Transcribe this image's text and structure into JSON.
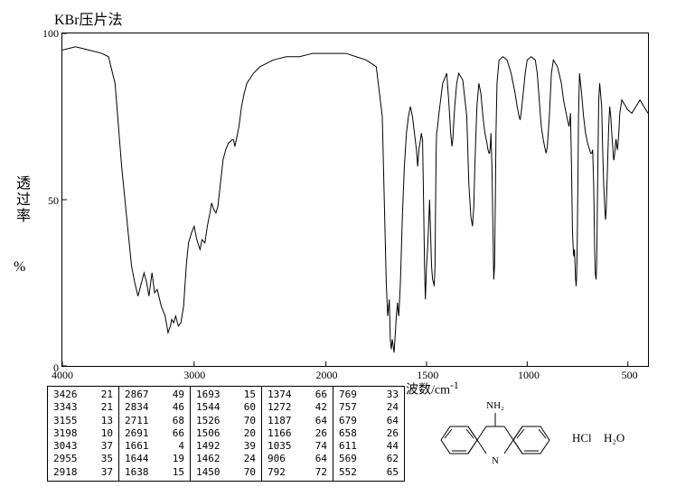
{
  "title": "KBr压片法",
  "ylabel1": "透过率",
  "ylabel2": "%",
  "xlabel": "波数/cm",
  "xlabel_sup": "-1",
  "chart": {
    "type": "line",
    "xlim": [
      4000,
      400
    ],
    "ylim": [
      0,
      100
    ],
    "yticks": [
      0,
      50,
      100
    ],
    "xticks": [
      4000,
      3000,
      2000,
      1500,
      1000,
      500
    ],
    "line_color": "#000000",
    "background_color": "#ffffff",
    "line_width": 1,
    "points": [
      [
        4000,
        95
      ],
      [
        3900,
        96
      ],
      [
        3800,
        95
      ],
      [
        3700,
        94
      ],
      [
        3650,
        93
      ],
      [
        3600,
        85
      ],
      [
        3550,
        60
      ],
      [
        3500,
        40
      ],
      [
        3475,
        30
      ],
      [
        3450,
        25
      ],
      [
        3426,
        21
      ],
      [
        3400,
        25
      ],
      [
        3380,
        28
      ],
      [
        3360,
        25
      ],
      [
        3343,
        21
      ],
      [
        3320,
        28
      ],
      [
        3300,
        22
      ],
      [
        3280,
        23
      ],
      [
        3250,
        18
      ],
      [
        3220,
        15
      ],
      [
        3198,
        10
      ],
      [
        3180,
        12
      ],
      [
        3170,
        14
      ],
      [
        3155,
        13
      ],
      [
        3140,
        15
      ],
      [
        3120,
        12
      ],
      [
        3100,
        13
      ],
      [
        3080,
        18
      ],
      [
        3060,
        30
      ],
      [
        3043,
        37
      ],
      [
        3020,
        40
      ],
      [
        3000,
        42
      ],
      [
        2980,
        38
      ],
      [
        2955,
        35
      ],
      [
        2940,
        38
      ],
      [
        2918,
        37
      ],
      [
        2900,
        42
      ],
      [
        2880,
        46
      ],
      [
        2867,
        49
      ],
      [
        2850,
        47
      ],
      [
        2834,
        46
      ],
      [
        2820,
        48
      ],
      [
        2800,
        55
      ],
      [
        2780,
        62
      ],
      [
        2760,
        65
      ],
      [
        2740,
        67
      ],
      [
        2711,
        68
      ],
      [
        2700,
        68
      ],
      [
        2691,
        66
      ],
      [
        2680,
        68
      ],
      [
        2660,
        72
      ],
      [
        2640,
        78
      ],
      [
        2620,
        82
      ],
      [
        2600,
        85
      ],
      [
        2550,
        88
      ],
      [
        2500,
        90
      ],
      [
        2400,
        92
      ],
      [
        2300,
        93
      ],
      [
        2200,
        93
      ],
      [
        2100,
        94
      ],
      [
        2000,
        94
      ],
      [
        1950,
        94
      ],
      [
        1900,
        94
      ],
      [
        1850,
        93
      ],
      [
        1800,
        92
      ],
      [
        1750,
        90
      ],
      [
        1720,
        75
      ],
      [
        1710,
        50
      ],
      [
        1700,
        25
      ],
      [
        1693,
        15
      ],
      [
        1685,
        20
      ],
      [
        1680,
        8
      ],
      [
        1675,
        5
      ],
      [
        1670,
        8
      ],
      [
        1661,
        4
      ],
      [
        1655,
        10
      ],
      [
        1650,
        15
      ],
      [
        1644,
        19
      ],
      [
        1640,
        16
      ],
      [
        1638,
        15
      ],
      [
        1630,
        25
      ],
      [
        1620,
        45
      ],
      [
        1610,
        60
      ],
      [
        1600,
        70
      ],
      [
        1590,
        75
      ],
      [
        1580,
        78
      ],
      [
        1570,
        75
      ],
      [
        1560,
        70
      ],
      [
        1550,
        65
      ],
      [
        1544,
        60
      ],
      [
        1538,
        65
      ],
      [
        1530,
        68
      ],
      [
        1526,
        70
      ],
      [
        1520,
        68
      ],
      [
        1515,
        50
      ],
      [
        1510,
        30
      ],
      [
        1506,
        20
      ],
      [
        1500,
        30
      ],
      [
        1495,
        35
      ],
      [
        1492,
        39
      ],
      [
        1488,
        45
      ],
      [
        1485,
        50
      ],
      [
        1480,
        40
      ],
      [
        1475,
        30
      ],
      [
        1470,
        26
      ],
      [
        1465,
        25
      ],
      [
        1462,
        24
      ],
      [
        1458,
        30
      ],
      [
        1455,
        50
      ],
      [
        1452,
        65
      ],
      [
        1450,
        70
      ],
      [
        1445,
        72
      ],
      [
        1440,
        75
      ],
      [
        1420,
        85
      ],
      [
        1400,
        88
      ],
      [
        1390,
        80
      ],
      [
        1380,
        70
      ],
      [
        1374,
        66
      ],
      [
        1370,
        68
      ],
      [
        1360,
        78
      ],
      [
        1350,
        85
      ],
      [
        1340,
        88
      ],
      [
        1320,
        86
      ],
      [
        1300,
        75
      ],
      [
        1290,
        55
      ],
      [
        1280,
        45
      ],
      [
        1272,
        42
      ],
      [
        1265,
        48
      ],
      [
        1260,
        60
      ],
      [
        1250,
        78
      ],
      [
        1240,
        85
      ],
      [
        1230,
        82
      ],
      [
        1220,
        75
      ],
      [
        1210,
        70
      ],
      [
        1200,
        67
      ],
      [
        1195,
        65
      ],
      [
        1190,
        64
      ],
      [
        1187,
        64
      ],
      [
        1183,
        66
      ],
      [
        1180,
        70
      ],
      [
        1175,
        60
      ],
      [
        1170,
        40
      ],
      [
        1166,
        26
      ],
      [
        1162,
        30
      ],
      [
        1158,
        50
      ],
      [
        1155,
        70
      ],
      [
        1150,
        85
      ],
      [
        1140,
        92
      ],
      [
        1120,
        93
      ],
      [
        1100,
        92
      ],
      [
        1080,
        88
      ],
      [
        1060,
        82
      ],
      [
        1050,
        78
      ],
      [
        1040,
        75
      ],
      [
        1035,
        74
      ],
      [
        1030,
        76
      ],
      [
        1020,
        82
      ],
      [
        1010,
        88
      ],
      [
        1000,
        92
      ],
      [
        980,
        93
      ],
      [
        960,
        92
      ],
      [
        950,
        88
      ],
      [
        940,
        80
      ],
      [
        930,
        72
      ],
      [
        920,
        68
      ],
      [
        910,
        65
      ],
      [
        906,
        64
      ],
      [
        900,
        66
      ],
      [
        890,
        75
      ],
      [
        880,
        88
      ],
      [
        870,
        92
      ],
      [
        850,
        90
      ],
      [
        830,
        85
      ],
      [
        820,
        80
      ],
      [
        810,
        77
      ],
      [
        800,
        74
      ],
      [
        796,
        73
      ],
      [
        792,
        72
      ],
      [
        788,
        74
      ],
      [
        785,
        76
      ],
      [
        780,
        60
      ],
      [
        775,
        40
      ],
      [
        770,
        34
      ],
      [
        769,
        33
      ],
      [
        765,
        35
      ],
      [
        762,
        30
      ],
      [
        760,
        26
      ],
      [
        758,
        25
      ],
      [
        757,
        24
      ],
      [
        755,
        26
      ],
      [
        752,
        35
      ],
      [
        748,
        55
      ],
      [
        745,
        75
      ],
      [
        740,
        88
      ],
      [
        730,
        82
      ],
      [
        720,
        75
      ],
      [
        710,
        70
      ],
      [
        700,
        67
      ],
      [
        690,
        65
      ],
      [
        685,
        64
      ],
      [
        680,
        64
      ],
      [
        679,
        64
      ],
      [
        675,
        65
      ],
      [
        670,
        55
      ],
      [
        665,
        35
      ],
      [
        662,
        28
      ],
      [
        660,
        27
      ],
      [
        658,
        26
      ],
      [
        655,
        30
      ],
      [
        652,
        45
      ],
      [
        648,
        65
      ],
      [
        645,
        80
      ],
      [
        640,
        85
      ],
      [
        630,
        78
      ],
      [
        625,
        65
      ],
      [
        620,
        55
      ],
      [
        615,
        48
      ],
      [
        612,
        45
      ],
      [
        611,
        44
      ],
      [
        608,
        46
      ],
      [
        605,
        52
      ],
      [
        600,
        62
      ],
      [
        595,
        72
      ],
      [
        590,
        78
      ],
      [
        585,
        75
      ],
      [
        580,
        70
      ],
      [
        575,
        66
      ],
      [
        572,
        63
      ],
      [
        570,
        62
      ],
      [
        569,
        62
      ],
      [
        565,
        64
      ],
      [
        560,
        68
      ],
      [
        558,
        68
      ],
      [
        555,
        66
      ],
      [
        552,
        65
      ],
      [
        550,
        66
      ],
      [
        545,
        70
      ],
      [
        540,
        76
      ],
      [
        530,
        80
      ],
      [
        520,
        79
      ],
      [
        510,
        78
      ],
      [
        500,
        77
      ],
      [
        480,
        76
      ],
      [
        460,
        78
      ],
      [
        440,
        80
      ],
      [
        420,
        78
      ],
      [
        400,
        76
      ]
    ]
  },
  "peak_table": {
    "columns": [
      [
        [
          "3426",
          "21"
        ],
        [
          "3343",
          "21"
        ],
        [
          "3155",
          "13"
        ],
        [
          "3198",
          "10"
        ],
        [
          "3043",
          "37"
        ],
        [
          "2955",
          "35"
        ],
        [
          "2918",
          "37"
        ]
      ],
      [
        [
          "2867",
          "49"
        ],
        [
          "2834",
          "46"
        ],
        [
          "2711",
          "68"
        ],
        [
          "2691",
          "66"
        ],
        [
          "1661",
          "4"
        ],
        [
          "1644",
          "19"
        ],
        [
          "1638",
          "15"
        ]
      ],
      [
        [
          "1693",
          "15"
        ],
        [
          "1544",
          "60"
        ],
        [
          "1526",
          "70"
        ],
        [
          "1506",
          "20"
        ],
        [
          "1492",
          "39"
        ],
        [
          "1462",
          "24"
        ],
        [
          "1450",
          "70"
        ]
      ],
      [
        [
          "1374",
          "66"
        ],
        [
          "1272",
          "42"
        ],
        [
          "1187",
          "64"
        ],
        [
          "1166",
          "26"
        ],
        [
          "1035",
          "74"
        ],
        [
          "906",
          "64"
        ],
        [
          "792",
          "72"
        ]
      ],
      [
        [
          "769",
          "33"
        ],
        [
          "757",
          "24"
        ],
        [
          "679",
          "64"
        ],
        [
          "658",
          "26"
        ],
        [
          "611",
          "44"
        ],
        [
          "569",
          "62"
        ],
        [
          "552",
          "65"
        ]
      ]
    ],
    "font_family": "monospace",
    "font_size": 11
  },
  "structure": {
    "labels": {
      "nh2": "NH₂",
      "hcl": "HCl",
      "h2o": "H₂O"
    },
    "line_color": "#000000"
  }
}
